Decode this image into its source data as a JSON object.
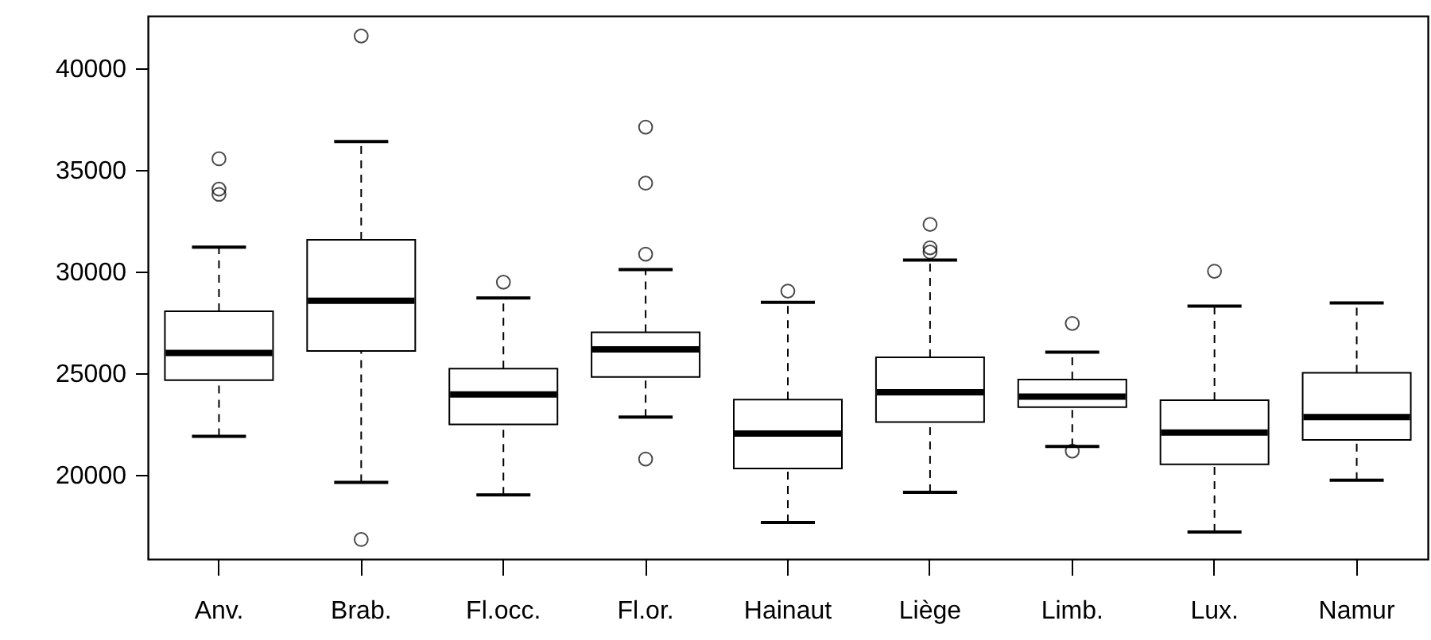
{
  "chart_data": {
    "type": "box",
    "categories": [
      "Anv.",
      "Brab.",
      "Fl.occ.",
      "Fl.or.",
      "Hainaut",
      "Liège",
      "Limb.",
      "Lux.",
      "Namur"
    ],
    "ylim": [
      15860,
      42580
    ],
    "yticks": [
      20000,
      25000,
      30000,
      35000,
      40000
    ],
    "grid": false,
    "boxes": [
      {
        "low": 21900,
        "q1": 24660,
        "median": 26000,
        "q3": 28050,
        "high": 31200,
        "outliers": [
          35550,
          34060,
          33800
        ]
      },
      {
        "low": 19630,
        "q1": 26090,
        "median": 28570,
        "q3": 31560,
        "high": 36400,
        "outliers": [
          41590,
          16820
        ]
      },
      {
        "low": 19010,
        "q1": 22480,
        "median": 23960,
        "q3": 25230,
        "high": 28700,
        "outliers": [
          29480
        ]
      },
      {
        "low": 22840,
        "q1": 24820,
        "median": 26170,
        "q3": 27010,
        "high": 30100,
        "outliers": [
          37110,
          34350,
          30860,
          20780
        ]
      },
      {
        "low": 17660,
        "q1": 20310,
        "median": 22030,
        "q3": 23700,
        "high": 28490,
        "outliers": [
          29040
        ]
      },
      {
        "low": 19140,
        "q1": 22600,
        "median": 24060,
        "q3": 25780,
        "high": 30570,
        "outliers": [
          32320,
          31170,
          30960
        ]
      },
      {
        "low": 21400,
        "q1": 23330,
        "median": 23850,
        "q3": 24690,
        "high": 26040,
        "outliers": [
          27450,
          21170
        ]
      },
      {
        "low": 17190,
        "q1": 20520,
        "median": 22080,
        "q3": 23670,
        "high": 28300,
        "outliers": [
          30020
        ]
      },
      {
        "low": 19740,
        "q1": 21720,
        "median": 22840,
        "q3": 25020,
        "high": 28460
      }
    ]
  }
}
